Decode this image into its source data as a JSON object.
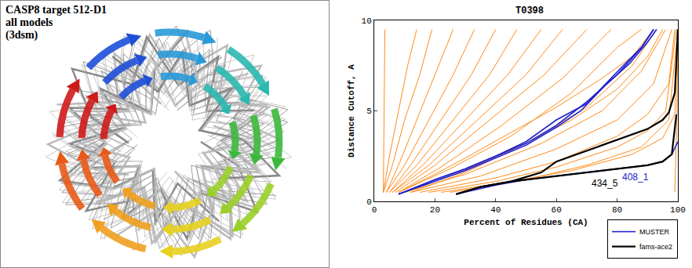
{
  "panel": {
    "title_lines": [
      "CASP8 target 512-D1",
      "all models",
      "(3dsm)"
    ]
  },
  "chart_data": {
    "type": "line",
    "title": "T0398",
    "x_label": "Percent of Residues (CA)",
    "y_label": "Distance Cutoff, A",
    "xlim": [
      0,
      100
    ],
    "ylim": [
      0,
      10
    ],
    "xticks": [
      0,
      20,
      40,
      60,
      80,
      100
    ],
    "yticks": [
      0,
      5,
      10
    ],
    "grid": false,
    "legend": "bottom right",
    "series": [
      {
        "color": "#ff8c1a",
        "x": [
          3,
          3.2,
          3.5
        ],
        "y": [
          0.5,
          5,
          9.5
        ]
      },
      {
        "color": "#ff8c1a",
        "x": [
          3,
          5,
          8,
          11,
          14
        ],
        "y": [
          0.5,
          2.5,
          5,
          7.5,
          9.5
        ]
      },
      {
        "color": "#ff8c1a",
        "x": [
          3,
          6,
          10,
          15,
          19
        ],
        "y": [
          0.5,
          2,
          4.5,
          7,
          9.5
        ]
      },
      {
        "color": "#ff8c1a",
        "x": [
          4,
          8,
          14,
          20,
          26
        ],
        "y": [
          0.5,
          2,
          4.5,
          7,
          9.5
        ]
      },
      {
        "color": "#ff8c1a",
        "x": [
          4,
          10,
          18,
          26,
          33
        ],
        "y": [
          0.5,
          2,
          4.5,
          7,
          9.5
        ]
      },
      {
        "color": "#ff8c1a",
        "x": [
          5,
          12,
          22,
          32,
          40
        ],
        "y": [
          0.5,
          2,
          4.5,
          7,
          9.5
        ]
      },
      {
        "color": "#ff8c1a",
        "x": [
          5,
          14,
          26,
          38,
          47
        ],
        "y": [
          0.5,
          2,
          4.5,
          7,
          9.5
        ]
      },
      {
        "color": "#ff8c1a",
        "x": [
          6,
          16,
          30,
          44,
          55
        ],
        "y": [
          0.5,
          2,
          4.5,
          7,
          9.5
        ]
      },
      {
        "color": "#ff8c1a",
        "x": [
          6,
          18,
          34,
          50,
          62
        ],
        "y": [
          0.5,
          2,
          4.5,
          7,
          9.5
        ]
      },
      {
        "color": "#ff8c1a",
        "x": [
          7,
          20,
          38,
          56,
          70
        ],
        "y": [
          0.5,
          2,
          4.5,
          7,
          9.5
        ]
      },
      {
        "color": "#ff8c1a",
        "x": [
          8,
          22,
          42,
          62,
          78
        ],
        "y": [
          0.5,
          1.9,
          4.2,
          6.8,
          9.5
        ]
      },
      {
        "color": "#ff8c1a",
        "x": [
          8,
          25,
          45,
          65,
          80,
          88
        ],
        "y": [
          0.5,
          1.8,
          3.6,
          6,
          8.5,
          9.5
        ]
      },
      {
        "color": "#ff8c1a",
        "x": [
          10,
          28,
          50,
          70,
          85,
          93
        ],
        "y": [
          0.5,
          1.6,
          3.2,
          5.2,
          7.5,
          9.5
        ]
      },
      {
        "color": "#ff8c1a",
        "x": [
          10,
          30,
          55,
          75,
          88,
          96
        ],
        "y": [
          0.5,
          1.5,
          3.2,
          5,
          7.2,
          9.5
        ]
      },
      {
        "color": "#ff8c1a",
        "x": [
          12,
          35,
          60,
          80,
          92,
          98
        ],
        "y": [
          0.5,
          1.4,
          2.9,
          4.5,
          6.5,
          9.5
        ]
      },
      {
        "color": "#ff8c1a",
        "x": [
          15,
          40,
          60,
          80,
          90,
          97,
          99
        ],
        "y": [
          0.5,
          1.3,
          2.2,
          3.6,
          4.8,
          6.5,
          9.5
        ]
      },
      {
        "color": "#ff8c1a",
        "x": [
          18,
          40,
          60,
          80,
          90,
          96,
          99.5
        ],
        "y": [
          0.5,
          1.1,
          1.9,
          3.0,
          3.9,
          5.0,
          9.5
        ]
      },
      {
        "color": "#ff8c1a",
        "x": [
          22,
          45,
          65,
          85,
          95,
          99,
          100
        ],
        "y": [
          0.5,
          1.1,
          1.7,
          2.6,
          3.5,
          4.8,
          9.5
        ]
      },
      {
        "color": "#ff8c1a",
        "x": [
          25,
          50,
          70,
          88,
          97,
          100
        ],
        "y": [
          0.5,
          1.2,
          2.0,
          3.0,
          4.5,
          9.5
        ]
      },
      {
        "color": "#ff8c1a",
        "x": [
          8,
          20,
          30,
          45,
          60,
          75,
          85,
          92
        ],
        "y": [
          0.5,
          1.5,
          2.4,
          3.8,
          5.2,
          6.8,
          8,
          9.5
        ]
      },
      {
        "color": "#ff8c1a",
        "x": [
          12,
          30,
          50,
          65,
          80,
          90,
          95
        ],
        "y": [
          0.5,
          1.6,
          3.2,
          4.5,
          6.2,
          8,
          9.5
        ]
      },
      {
        "color": "#ff8c1a",
        "x": [
          99,
          99.7,
          100
        ],
        "y": [
          0.5,
          5,
          9.5
        ]
      },
      {
        "name": "MUSTER",
        "color": "#2222cc",
        "x": [
          8,
          20,
          30,
          40,
          50,
          60,
          70,
          80,
          88,
          92
        ],
        "y": [
          0.4,
          1.2,
          1.8,
          2.5,
          3.2,
          4.2,
          5.5,
          7,
          8.5,
          9.5
        ]
      },
      {
        "name": "MUSTER",
        "color": "#2222cc",
        "x": [
          8,
          20,
          30,
          40,
          50,
          60,
          70,
          78,
          82,
          88,
          92
        ],
        "y": [
          0.4,
          1.2,
          1.8,
          2.5,
          3.3,
          4.5,
          5.4,
          6.8,
          7.5,
          8.5,
          9.5
        ]
      },
      {
        "name": "MUSTER",
        "color": "#2222cc",
        "x": [
          8,
          20,
          30,
          40,
          50,
          60,
          68,
          76,
          84,
          90,
          93
        ],
        "y": [
          0.4,
          1.1,
          1.7,
          2.4,
          3.1,
          4.1,
          5.0,
          6.4,
          7.6,
          8.8,
          9.5
        ]
      },
      {
        "name": "MUSTER",
        "color": "#2222cc",
        "x": [
          27,
          40,
          50,
          60,
          70,
          80,
          90,
          95,
          98,
          100
        ],
        "y": [
          0.4,
          0.9,
          1.2,
          1.4,
          1.6,
          1.8,
          2.0,
          2.2,
          2.6,
          3.3
        ]
      },
      {
        "name": "fams-ace2",
        "color": "#000000",
        "x": [
          27,
          35,
          45,
          55,
          60,
          65,
          70,
          75,
          80,
          85,
          90,
          95,
          97,
          99,
          100
        ],
        "y": [
          0.4,
          0.8,
          1.1,
          1.6,
          2.2,
          2.5,
          2.8,
          3.1,
          3.4,
          3.7,
          4.0,
          4.5,
          4.9,
          6.0,
          9.5
        ]
      },
      {
        "name": "fams-ace2",
        "color": "#000000",
        "x": [
          27,
          35,
          45,
          55,
          65,
          75,
          85,
          90,
          95,
          98,
          99.5
        ],
        "y": [
          0.4,
          0.8,
          1.1,
          1.3,
          1.5,
          1.7,
          1.9,
          2.0,
          2.2,
          2.6,
          4.8
        ]
      }
    ],
    "annotations": [
      {
        "text": "434_5",
        "x": 76,
        "y": 1.0,
        "color": "#000000"
      },
      {
        "text": "408_1",
        "x": 86,
        "y": 1.35,
        "color": "#2222cc"
      }
    ]
  }
}
